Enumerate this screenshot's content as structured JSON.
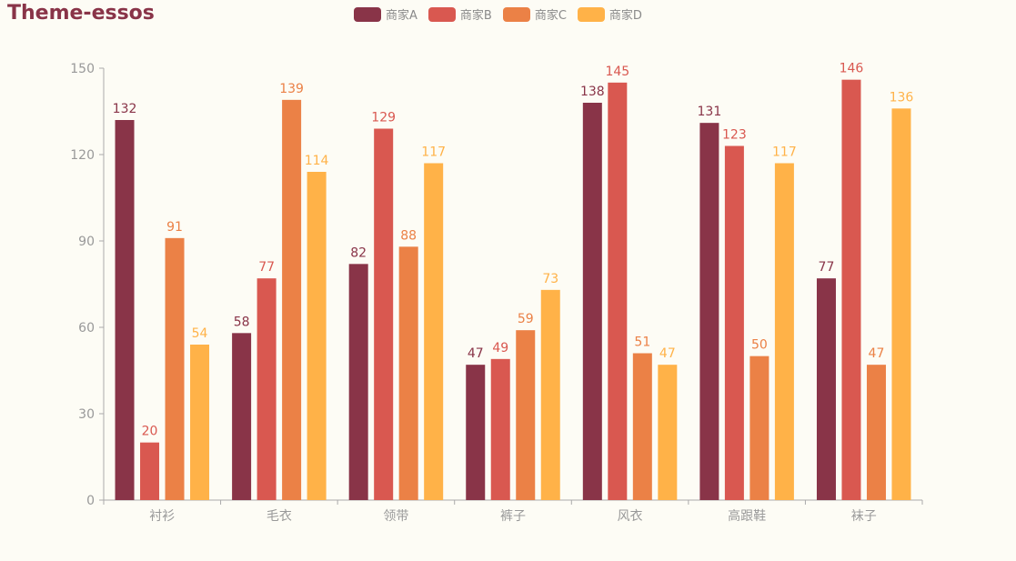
{
  "chart_data": {
    "type": "bar",
    "title": "Theme-essos",
    "categories": [
      "衬衫",
      "毛衣",
      "领带",
      "裤子",
      "风衣",
      "高跟鞋",
      "袜子"
    ],
    "series": [
      {
        "name": "商家A",
        "color": "#893448",
        "values": [
          132,
          58,
          82,
          47,
          138,
          131,
          77
        ]
      },
      {
        "name": "商家B",
        "color": "#d95850",
        "values": [
          20,
          77,
          129,
          49,
          145,
          123,
          146
        ]
      },
      {
        "name": "商家C",
        "color": "#eb8146",
        "values": [
          91,
          139,
          88,
          59,
          51,
          50,
          47
        ]
      },
      {
        "name": "商家D",
        "color": "#ffb248",
        "values": [
          54,
          114,
          117,
          73,
          47,
          117,
          136
        ]
      }
    ],
    "yticks": [
      0,
      30,
      60,
      90,
      120,
      150
    ],
    "ylim": [
      0,
      150
    ],
    "xlabel": "",
    "ylabel": "",
    "legend_position": "top-center",
    "grid": false
  }
}
